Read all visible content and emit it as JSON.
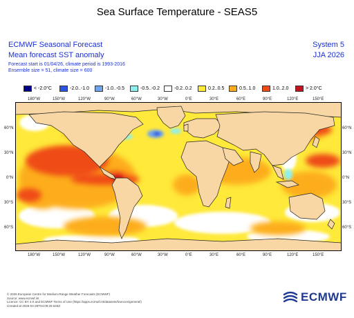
{
  "title": "Sea Surface Temperature - SEAS5",
  "header": {
    "line1": "ECMWF Seasonal Forecast",
    "line2": "Mean forecast SST anomaly",
    "line3": "Forecast start is 01/04/26, climate period is 1993-2016",
    "line4": "Ensemble size = 51, climate size = 600",
    "system": "System 5",
    "period": "JJA 2026"
  },
  "legend": [
    {
      "label": "< -2.0°C",
      "color": "#00008b"
    },
    {
      "label": "-2.0..-1.0",
      "color": "#2b55e0"
    },
    {
      "label": "-1.0..-0.5",
      "color": "#6fa4ee"
    },
    {
      "label": "-0.5..-0.2",
      "color": "#8fefef"
    },
    {
      "label": "-0.2..0.2",
      "color": "#ffffff"
    },
    {
      "label": "0.2..0.5",
      "color": "#ffe93a"
    },
    {
      "label": "0.5..1.0",
      "color": "#fdad1f"
    },
    {
      "label": "1.0..2.0",
      "color": "#ef4b14"
    },
    {
      "label": "> 2.0°C",
      "color": "#c3141e"
    }
  ],
  "axes": {
    "lon_labels": [
      "180°W",
      "150°W",
      "120°W",
      "90°W",
      "60°W",
      "30°W",
      "0°E",
      "30°E",
      "60°E",
      "90°E",
      "120°E",
      "150°E"
    ],
    "lat_labels": [
      "60°N",
      "30°N",
      "0°N",
      "30°S",
      "60°S"
    ]
  },
  "colors": {
    "land": "#f8d7a5",
    "accent": "#1a2fd0"
  },
  "footer": [
    "© 2026 European Centre for Medium-Range Weather Forecasts (ECMWF)",
    "Source: www.ecmwf.int",
    "Licence: CC BY 4.0 and ECMWF Terms of Use (https://apps.ecmwf.int/datasets/licences/general/)",
    "Created at 2026-04-28T04:09:29.625Z"
  ],
  "logo": {
    "text": "ECMWF",
    "icon": "ecmwf-logo-icon"
  }
}
